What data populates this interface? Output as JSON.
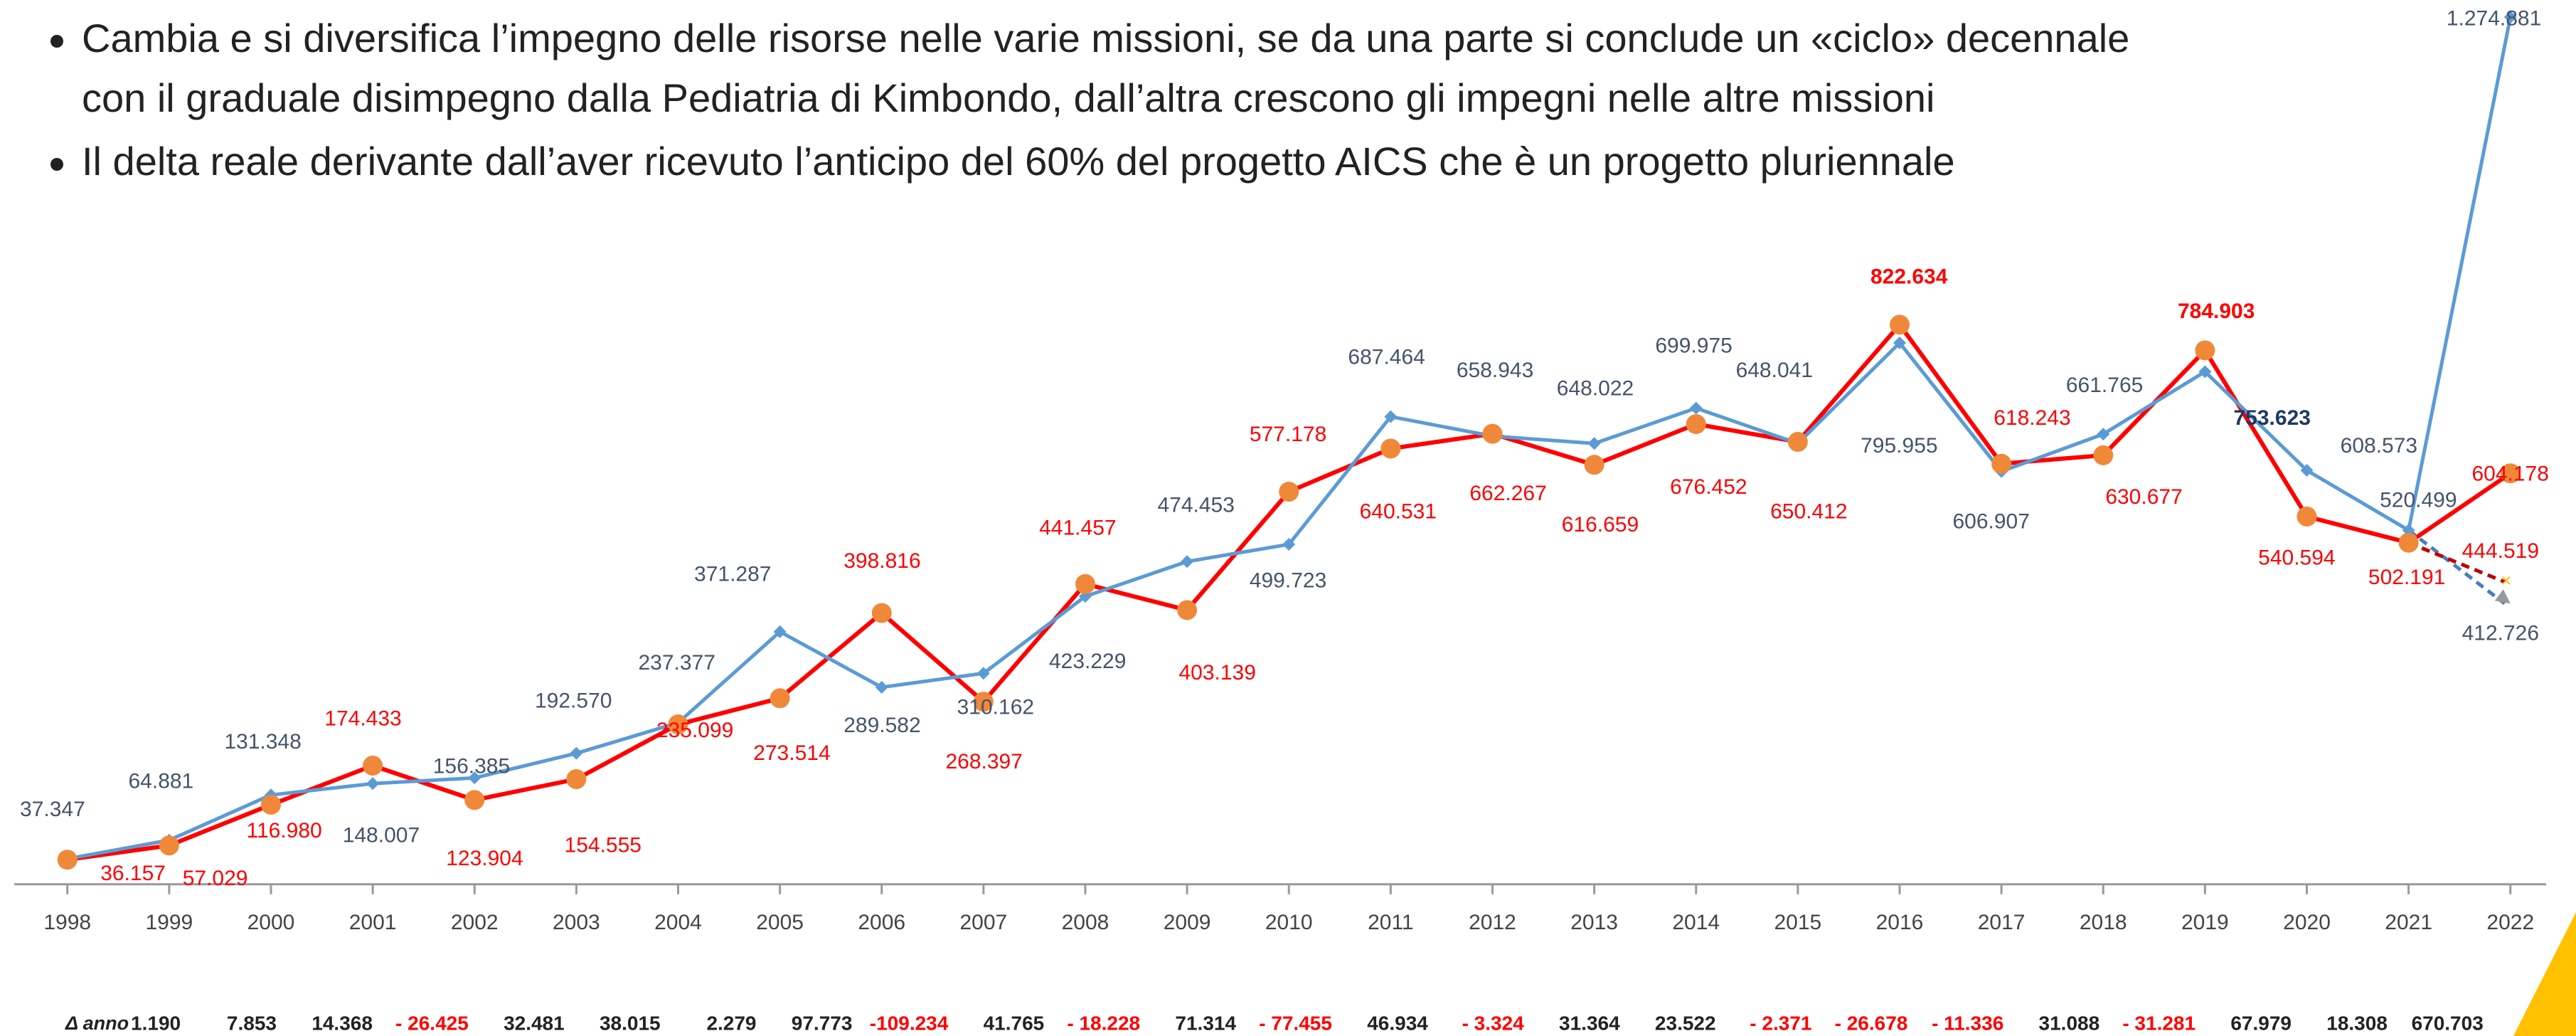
{
  "bullets": [
    "Cambia e si diversifica l’impegno delle risorse nelle varie missioni, se da una parte si conclude un «ciclo» decennale",
    "con il graduale disimpegno dalla Pediatria di Kimbondo, dall’altra crescono gli impegni nelle altre missioni",
    "Il delta reale derivante dall’aver ricevuto l’anticipo del 60% del progetto AICS che è un progetto pluriennale"
  ],
  "chart_data": {
    "type": "line",
    "categories": [
      "1998",
      "1999",
      "2000",
      "2001",
      "2002",
      "2003",
      "2004",
      "2005",
      "2006",
      "2007",
      "2008",
      "2009",
      "2010",
      "2011",
      "2012",
      "2013",
      "2014",
      "2015",
      "2016",
      "2017",
      "2018",
      "2019",
      "2020",
      "2021",
      "2022"
    ],
    "ylim": [
      0,
      1300000
    ],
    "series": [
      {
        "color": "#5b9bd5",
        "marker": "diamond",
        "values": [
          37347,
          64881,
          131348,
          148007,
          156385,
          192570,
          237377,
          371287,
          289582,
          310162,
          423229,
          474453,
          499723,
          687464,
          658943,
          648022,
          699975,
          648041,
          795955,
          606907,
          661765,
          753623,
          608573,
          520499,
          1274881
        ],
        "value_labels": [
          "37.347",
          "64.881",
          "131.348",
          "148.007",
          "156.385",
          "192.570",
          "237.377",
          "371.287",
          "289.582",
          "310.162",
          "423.229",
          "474.453",
          "499.723",
          "687.464",
          "658.943",
          "648.022",
          "699.975",
          "648.041",
          "795.955",
          "606.907",
          "661.765",
          "753.623",
          "608.573",
          "520.499",
          "1.274.881"
        ],
        "projection": 412726,
        "projection_label": "412.726"
      },
      {
        "color": "#ff0000",
        "marker": "circle",
        "marker_color": "#f0883a",
        "values": [
          36157,
          57029,
          116980,
          174433,
          123904,
          154555,
          235099,
          273514,
          398816,
          268397,
          441457,
          403139,
          577178,
          640531,
          662267,
          616659,
          676452,
          650412,
          822634,
          618243,
          630677,
          784903,
          540594,
          502191,
          604178
        ],
        "value_labels": [
          "36.157",
          "57.029",
          "116.980",
          "174.433",
          "123.904",
          "154.555",
          "235.099",
          "273.514",
          "398.816",
          "268.397",
          "441.457",
          "403.139",
          "577.178",
          "640.531",
          "662.267",
          "616.659",
          "676.452",
          "650.412",
          "822.634",
          "618.243",
          "630.677",
          "784.903",
          "540.594",
          "502.191",
          "604.178"
        ],
        "projection": 444519,
        "projection_label": "444.519"
      }
    ],
    "delta_label": "Δ anno",
    "delta": [
      "1.190",
      "7.853",
      "14.368",
      "- 26.425",
      "32.481",
      "38.015",
      "2.279",
      "97.773",
      "-109.234",
      "41.765",
      "- 18.228",
      "71.314",
      "- 77.455",
      "46.934",
      "- 3.324",
      "31.364",
      "23.522",
      "- 2.371",
      "- 26.678",
      "- 11.336",
      "31.088",
      "- 31.281",
      "67.979",
      "18.308",
      "670.703"
    ]
  }
}
